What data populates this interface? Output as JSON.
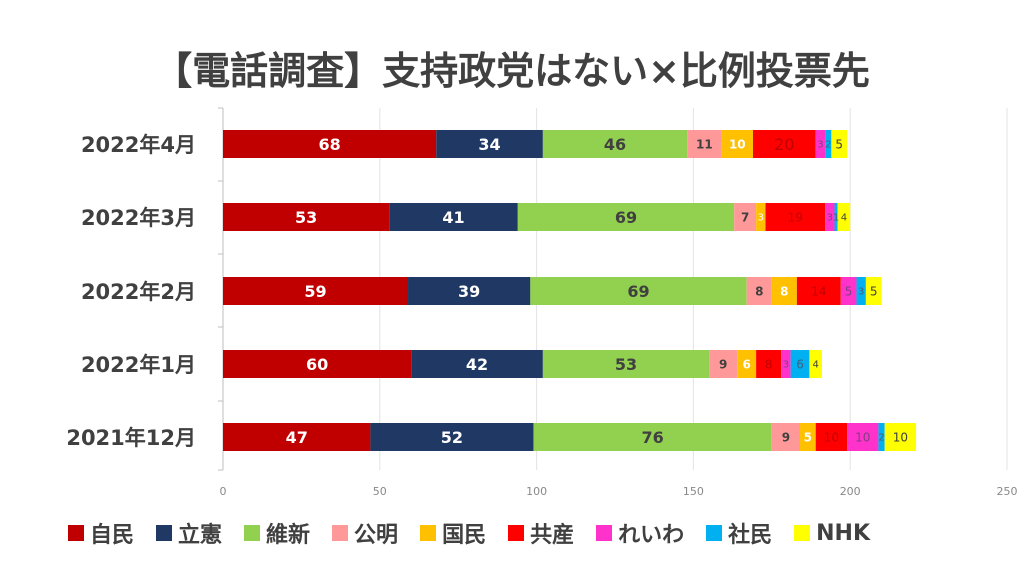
{
  "chart_data": {
    "type": "bar",
    "orientation": "horizontal",
    "stacked": true,
    "title": "【電話調査】支持政党はない×比例投票先",
    "categories": [
      "2022年4月",
      "2022年3月",
      "2022年2月",
      "2022年1月",
      "2021年12月"
    ],
    "xlim": [
      0,
      250
    ],
    "xticks": [
      0,
      50,
      100,
      150,
      200,
      250
    ],
    "grid": "vertical",
    "legend_position": "bottom",
    "series": [
      {
        "name": "自民",
        "color": "#c00000",
        "label_color": "#ffffff",
        "values": [
          68,
          53,
          59,
          60,
          47
        ]
      },
      {
        "name": "立憲",
        "color": "#1f3864",
        "label_color": "#ffffff",
        "values": [
          34,
          41,
          39,
          42,
          52
        ]
      },
      {
        "name": "維新",
        "color": "#92d050",
        "label_color": "#404040",
        "values": [
          46,
          69,
          69,
          53,
          76
        ]
      },
      {
        "name": "公明",
        "color": "#ff9999",
        "label_color": "#404040",
        "values": [
          11,
          7,
          8,
          9,
          9
        ]
      },
      {
        "name": "国民",
        "color": "#ffc000",
        "label_color": "#ffffff",
        "values": [
          10,
          3,
          8,
          6,
          5
        ]
      },
      {
        "name": "共産",
        "color": "#ff0000",
        "label_color": "#c00000",
        "values": [
          20,
          19,
          14,
          8,
          10
        ]
      },
      {
        "name": "れいわ",
        "color": "#ff33cc",
        "label_color": "#7f3f7f",
        "values": [
          3,
          3,
          5,
          3,
          10
        ]
      },
      {
        "name": "社民",
        "color": "#00b0f0",
        "label_color": "#3f5f7f",
        "values": [
          2,
          1,
          3,
          6,
          2
        ]
      },
      {
        "name": "NHK",
        "color": "#ffff00",
        "label_color": "#404040",
        "values": [
          5,
          4,
          5,
          4,
          10
        ]
      }
    ]
  }
}
